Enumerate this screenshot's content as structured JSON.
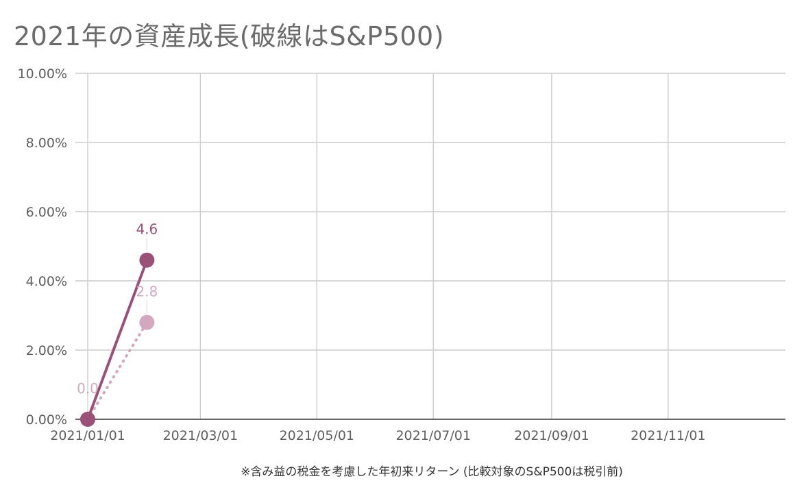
{
  "chart_data": {
    "type": "line",
    "title": "2021年の資産成長(破線はS&P500)",
    "xlabel": "※含み益の税金を考慮した年初来リターン (比較対象のS&P500は税引前)",
    "ylabel": "",
    "x_ticks": [
      "2021/01/01",
      "2021/03/01",
      "2021/05/01",
      "2021/07/01",
      "2021/09/01",
      "2021/11/01"
    ],
    "x_range": [
      "2021/01/01",
      "2021/12/31"
    ],
    "y_ticks": [
      "0.00%",
      "2.00%",
      "4.00%",
      "6.00%",
      "8.00%",
      "10.00%"
    ],
    "ylim": [
      0,
      10
    ],
    "grid": true,
    "legend": "none",
    "series": [
      {
        "style": "solid",
        "color": "#9b5077",
        "points": [
          {
            "x": "2021/01/01",
            "y": 0.0,
            "label": ""
          },
          {
            "x": "2021/02/01",
            "y": 4.6,
            "label": "4.6"
          }
        ]
      },
      {
        "style": "dotted",
        "color": "#d3a8bf",
        "points": [
          {
            "x": "2021/01/01",
            "y": 0.0,
            "label": "0.0"
          },
          {
            "x": "2021/02/01",
            "y": 2.8,
            "label": "2.8"
          }
        ]
      }
    ]
  }
}
